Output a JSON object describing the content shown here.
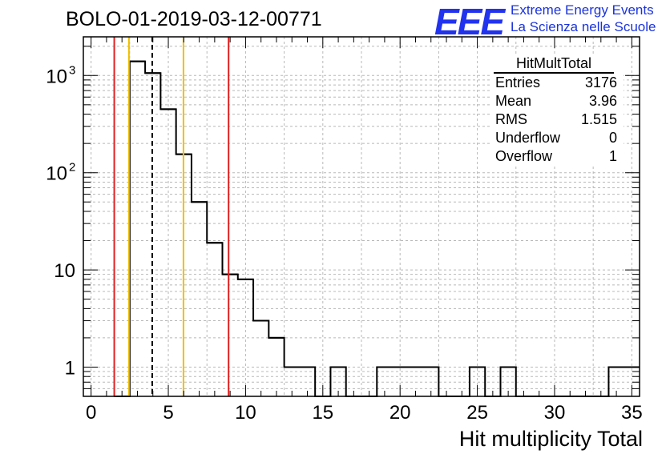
{
  "chart_data": {
    "type": "bar",
    "title": "BOLO-01-2019-03-12-00771",
    "xlabel": "Hit multiplicity Total",
    "ylabel": "",
    "xlim": [
      -0.5,
      35.5
    ],
    "ylim": [
      0.5,
      2500
    ],
    "yscale": "log",
    "grid": true,
    "x_ticks": [
      "0",
      "5",
      "10",
      "15",
      "20",
      "25",
      "30",
      "35"
    ],
    "y_ticks": [
      {
        "value": 1,
        "label": "1",
        "exp": ""
      },
      {
        "value": 10,
        "label": "10",
        "exp": ""
      },
      {
        "value": 100,
        "label": "10",
        "exp": "2"
      },
      {
        "value": 1000,
        "label": "10",
        "exp": "3"
      }
    ],
    "bins": [
      {
        "x": 2,
        "value": 0
      },
      {
        "x": 3,
        "value": 1400
      },
      {
        "x": 4,
        "value": 1060
      },
      {
        "x": 5,
        "value": 450
      },
      {
        "x": 6,
        "value": 155
      },
      {
        "x": 7,
        "value": 50
      },
      {
        "x": 8,
        "value": 19
      },
      {
        "x": 9,
        "value": 9
      },
      {
        "x": 10,
        "value": 8
      },
      {
        "x": 11,
        "value": 3
      },
      {
        "x": 12,
        "value": 2
      },
      {
        "x": 13,
        "value": 1
      },
      {
        "x": 14,
        "value": 1
      },
      {
        "x": 15,
        "value": 0
      },
      {
        "x": 16,
        "value": 1
      },
      {
        "x": 17,
        "value": 0
      },
      {
        "x": 18,
        "value": 0
      },
      {
        "x": 19,
        "value": 1
      },
      {
        "x": 20,
        "value": 1
      },
      {
        "x": 21,
        "value": 1
      },
      {
        "x": 22,
        "value": 1
      },
      {
        "x": 23,
        "value": 0
      },
      {
        "x": 24,
        "value": 0
      },
      {
        "x": 25,
        "value": 1
      },
      {
        "x": 26,
        "value": 0
      },
      {
        "x": 27,
        "value": 1
      },
      {
        "x": 28,
        "value": 0
      },
      {
        "x": 29,
        "value": 0
      },
      {
        "x": 30,
        "value": 0
      },
      {
        "x": 31,
        "value": 0
      },
      {
        "x": 32,
        "value": 0
      },
      {
        "x": 33,
        "value": 0
      },
      {
        "x": 34,
        "value": 1
      },
      {
        "x": 35,
        "value": 1
      }
    ],
    "reference_lines": [
      {
        "x": 1.5,
        "color": "#e02020",
        "style": "solid"
      },
      {
        "x": 2.45,
        "color": "#f0c000",
        "style": "solid"
      },
      {
        "x": 3.96,
        "color": "#000000",
        "style": "dashed"
      },
      {
        "x": 5.98,
        "color": "#f0c000",
        "style": "solid"
      },
      {
        "x": 8.9,
        "color": "#e02020",
        "style": "solid"
      }
    ],
    "stats": {
      "title": "HitMultTotal",
      "rows": [
        {
          "name": "Entries",
          "value": "3176"
        },
        {
          "name": "Mean",
          "value": "3.96"
        },
        {
          "name": "RMS",
          "value": "1.515"
        },
        {
          "name": "Underflow",
          "value": "0"
        },
        {
          "name": "Overflow",
          "value": "1"
        }
      ]
    }
  },
  "logo": {
    "text": "EEE",
    "line1": "Extreme Energy Events",
    "line2": "La Scienza nelle Scuole",
    "color": "#2233ee"
  }
}
